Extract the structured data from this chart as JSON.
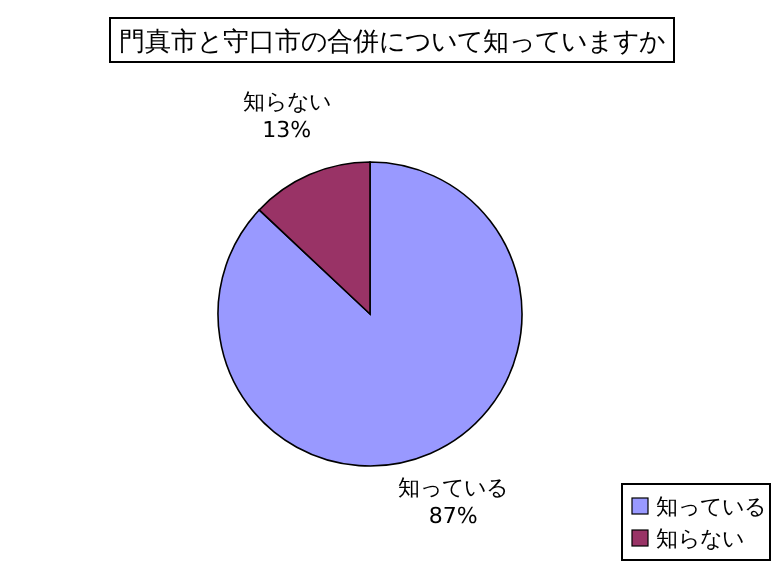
{
  "chart_data": {
    "type": "pie",
    "title": "門真市と守口市の合併について知っていますか",
    "categories": [
      "知っている",
      "知らない"
    ],
    "values": [
      87,
      13
    ],
    "colors": [
      "#9999ff",
      "#993366"
    ],
    "value_labels": [
      "87%",
      "13%"
    ],
    "legend": "bottom right"
  }
}
